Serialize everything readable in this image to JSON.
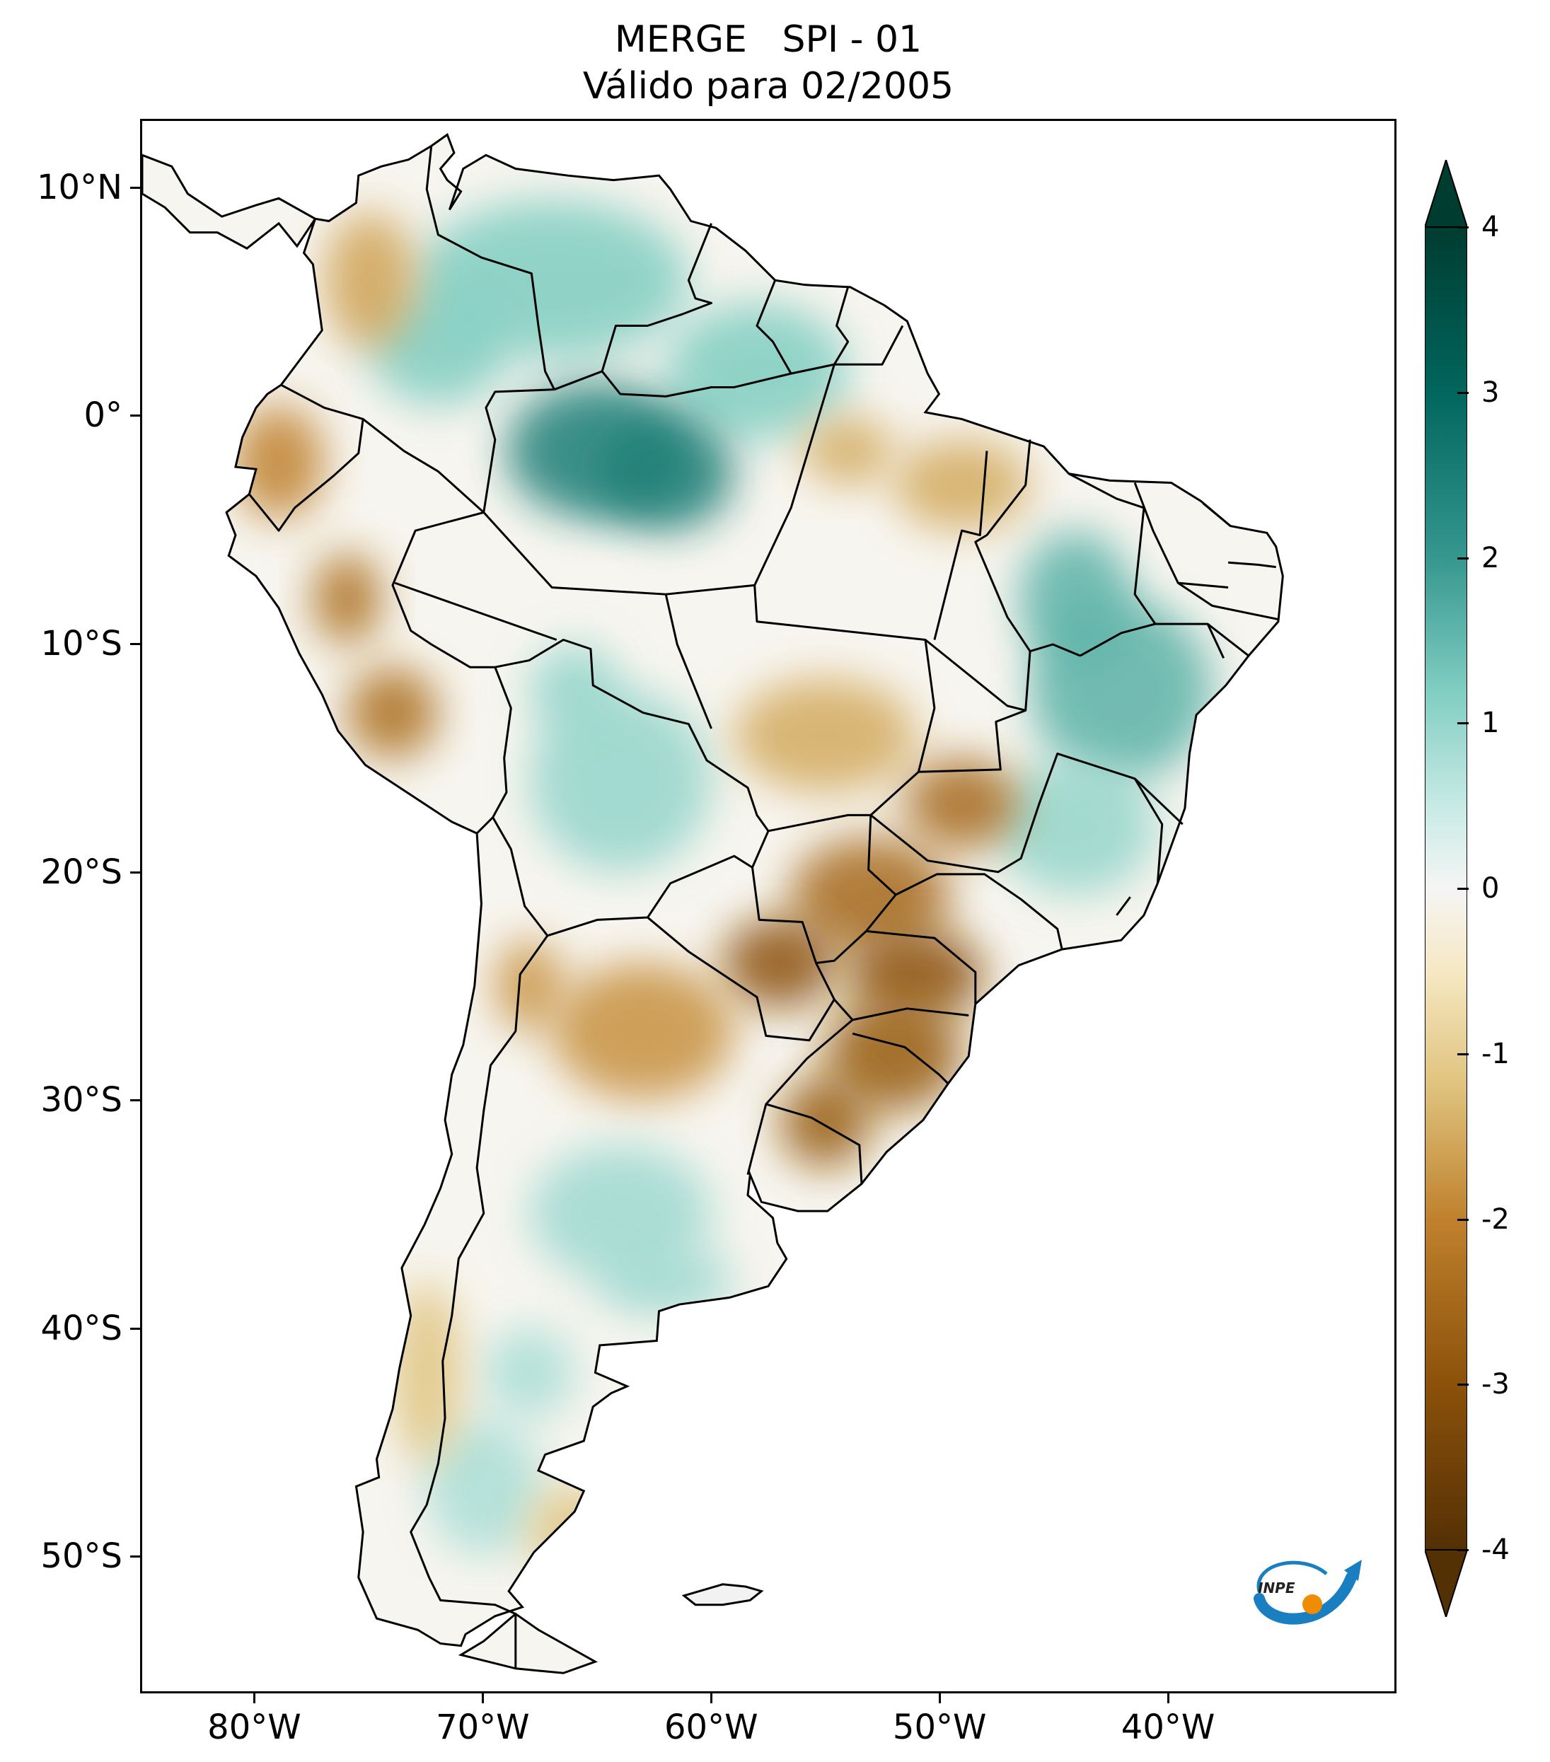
{
  "title": {
    "line1": "MERGE   SPI - 01",
    "line2": "Válido para 02/2005"
  },
  "map": {
    "region": "South America",
    "variable": "SPI - 01",
    "lon_range": [
      -85,
      -30
    ],
    "lat_range": [
      -56,
      13
    ],
    "colormap": "BrBG",
    "latitude_ticks": [
      {
        "value": 10,
        "label": "10°N"
      },
      {
        "value": 0,
        "label": "0°"
      },
      {
        "value": -10,
        "label": "10°S"
      },
      {
        "value": -20,
        "label": "20°S"
      },
      {
        "value": -30,
        "label": "30°S"
      },
      {
        "value": -40,
        "label": "40°S"
      },
      {
        "value": -50,
        "label": "50°S"
      }
    ],
    "longitude_ticks": [
      {
        "value": -80,
        "label": "80°W"
      },
      {
        "value": -70,
        "label": "70°W"
      },
      {
        "value": -60,
        "label": "60°W"
      },
      {
        "value": -50,
        "label": "50°W"
      },
      {
        "value": -40,
        "label": "40°W"
      }
    ],
    "anomaly_regions": [
      {
        "area": "Northern Amazon / Venezuela / Guyana",
        "spi": 1.2
      },
      {
        "area": "Central Amazon (Amazonas)",
        "spi": 2.5
      },
      {
        "area": "Bolivia",
        "spi": 1.0
      },
      {
        "area": "Northeast Brazil (Bahia)",
        "spi": 1.6
      },
      {
        "area": "Minas Gerais / Espirito Santo",
        "spi": 1.0
      },
      {
        "area": "Colombian Andes",
        "spi": -1.6
      },
      {
        "area": "Ecuador",
        "spi": -2.0
      },
      {
        "area": "Southern Peru",
        "spi": -2.4
      },
      {
        "area": "Mato Grosso",
        "spi": -1.5
      },
      {
        "area": "Mato Grosso do Sul / Sao Paulo",
        "spi": -2.5
      },
      {
        "area": "Parana / Paraguay",
        "spi": -3.0
      },
      {
        "area": "Santa Catarina / Rio Grande do Sul",
        "spi": -2.8
      },
      {
        "area": "Northern Argentina",
        "spi": -1.8
      },
      {
        "area": "Central Argentina",
        "spi": 0.9
      },
      {
        "area": "Patagonia",
        "spi": 0.8
      },
      {
        "area": "Southern Chile",
        "spi": -1.2
      }
    ]
  },
  "colorbar": {
    "min": -4,
    "max": 4,
    "extend": "both",
    "ticks": [
      {
        "value": 4,
        "label": "4"
      },
      {
        "value": 3,
        "label": "3"
      },
      {
        "value": 2,
        "label": "2"
      },
      {
        "value": 1,
        "label": "1"
      },
      {
        "value": 0,
        "label": "0"
      },
      {
        "value": -1,
        "label": "-1"
      },
      {
        "value": -2,
        "label": "-2"
      },
      {
        "value": -3,
        "label": "-3"
      },
      {
        "value": -4,
        "label": "-4"
      }
    ],
    "colors": {
      "dry_extreme": "#543005",
      "dry_strong": "#8c510a",
      "dry_moderate": "#bf812d",
      "dry_mild": "#dfc27d",
      "dry_weak": "#f6e8c3",
      "neutral": "#f5f5f5",
      "wet_weak": "#c7eae5",
      "wet_mild": "#80cdc1",
      "wet_moderate": "#35978f",
      "wet_strong": "#01665e",
      "wet_extreme": "#003c30"
    }
  },
  "logo": {
    "text": "INPE",
    "colors": {
      "arrow": "#1a7fc1",
      "sun": "#f08c00"
    }
  }
}
